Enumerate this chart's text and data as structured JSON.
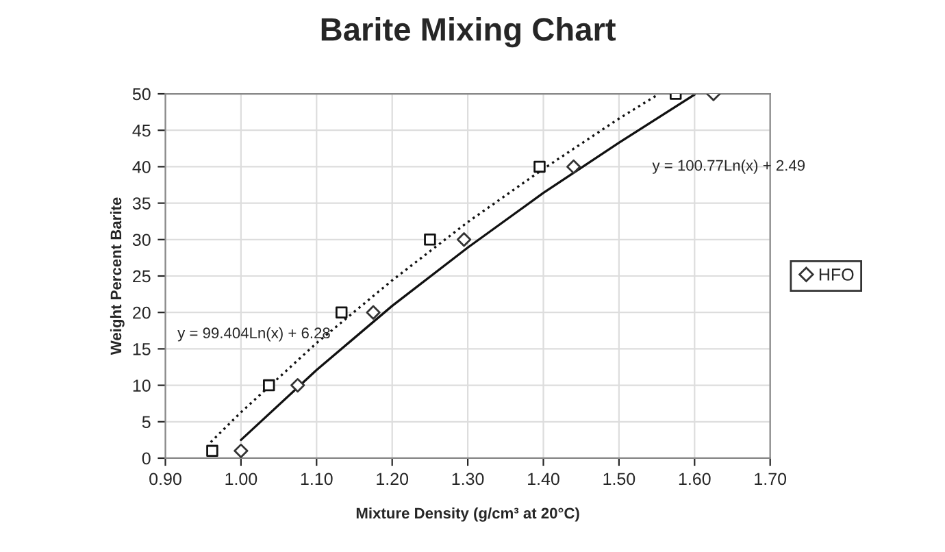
{
  "chart_data": {
    "type": "scatter",
    "title": "Barite Mixing Chart",
    "xlabel": "Mixture Density (g/cm³ at 20°C)",
    "ylabel": "Weight Percent Barite",
    "series": [
      {
        "name": "HFO",
        "marker": "diamond",
        "color": "#333333",
        "x": [
          1.0,
          1.075,
          1.175,
          1.295,
          1.44,
          1.625
        ],
        "values": [
          1,
          10,
          20,
          30,
          40,
          50
        ]
      },
      {
        "marker": "square",
        "color": "#111111",
        "x": [
          0.962,
          1.037,
          1.133,
          1.25,
          1.395,
          1.575
        ],
        "values": [
          1,
          10,
          20,
          30,
          40,
          50
        ]
      },
      {
        "type": "line",
        "line_style": "solid",
        "marker": "none",
        "color": "#111111",
        "x": [
          1.0,
          1.1,
          1.2,
          1.3,
          1.4,
          1.5,
          1.6
        ],
        "values": [
          2.5,
          12.1,
          20.9,
          28.9,
          36.4,
          43.3,
          49.9
        ]
      },
      {
        "type": "line",
        "line_style": "dotted",
        "marker": "none",
        "color": "#111111",
        "x": [
          0.96,
          1.0,
          1.1,
          1.2,
          1.3,
          1.4,
          1.5,
          1.55
        ],
        "values": [
          2.2,
          6.3,
          15.8,
          24.4,
          32.4,
          39.7,
          46.6,
          49.8
        ]
      }
    ],
    "annotations": [
      "y = 99.404Ln(x) + 6.28",
      "y = 100.77Ln(x) + 2.49"
    ],
    "xlim": [
      0.9,
      1.7
    ],
    "xticks": [
      {
        "value": 0.9,
        "label": "0.90"
      },
      {
        "value": 1.0,
        "label": "1.00"
      },
      {
        "value": 1.1,
        "label": "1.10"
      },
      {
        "value": 1.2,
        "label": "1.20"
      },
      {
        "value": 1.3,
        "label": "1.30"
      },
      {
        "value": 1.4,
        "label": "1.40"
      },
      {
        "value": 1.5,
        "label": "1.50"
      },
      {
        "value": 1.6,
        "label": "1.60"
      },
      {
        "value": 1.7,
        "label": "1.70"
      }
    ],
    "ylim": [
      0,
      50
    ],
    "yticks": [
      0,
      5,
      10,
      15,
      20,
      25,
      30,
      35,
      40,
      45,
      50
    ],
    "grid": true,
    "legend": "right"
  }
}
